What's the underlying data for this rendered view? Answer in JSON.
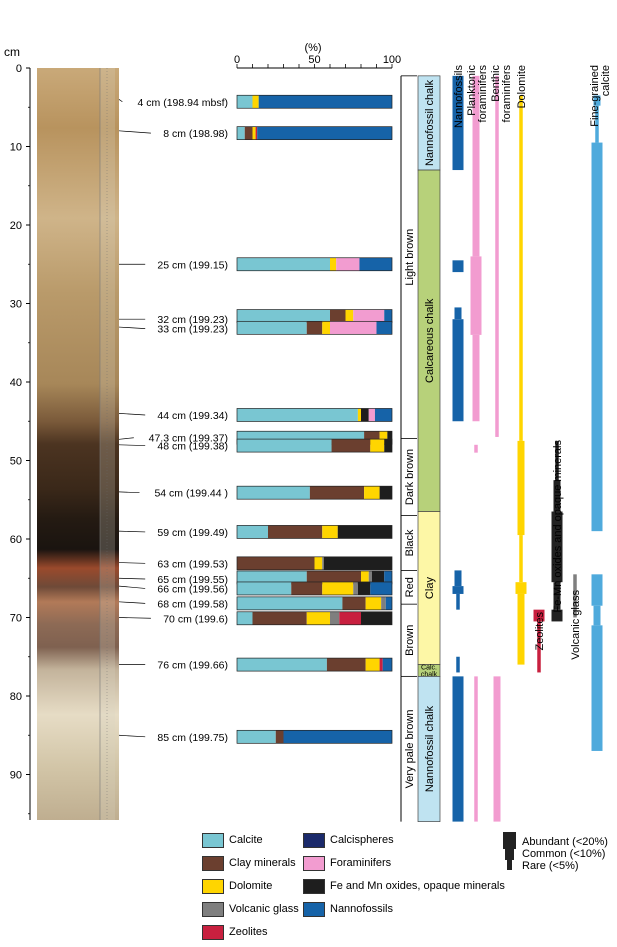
{
  "colors": {
    "Calcite": "#79c6d2",
    "Clay minerals": "#6b3f2f",
    "Dolomite": "#ffd500",
    "Volcanic glass": "#7f7f7f",
    "Zeolites": "#c8203f",
    "Calcispheres": "#1b2a6b",
    "Foraminifers": "#f29cd0",
    "Fe and Mn oxides, opaque minerals": "#1e1e1e",
    "Nannofossils": "#1663a8",
    "lithology_blue": "#bfe3f1",
    "lithology_green": "#b7d17a",
    "lithology_yellow": "#fdf7a6",
    "abundance_dark": "#222222",
    "fine_calcite": "#4faadc"
  },
  "depth_axis": {
    "unit": "cm",
    "ticks": [
      "0",
      "10",
      "20",
      "30",
      "40",
      "50",
      "60",
      "70",
      "80",
      "90"
    ]
  },
  "percent_axis": {
    "label": "(%)",
    "ticks": [
      "0",
      "50",
      "100"
    ]
  },
  "column_headers": {
    "nannofossils": "Nannofossils",
    "planktonic_1": "Planktonic",
    "planktonic_2": "foraminifers",
    "benthic_1": "Benthic",
    "benthic_2": "foraminifers",
    "dolomite": "Dolomite",
    "fine_calcite_1": "Fine-grained",
    "fine_calcite_2": "calcite",
    "fe_mn": "Fe-Mn oxides and opaque minerals",
    "zeolites": "Zeolites",
    "volcanic_glass": "Volcanic glass"
  },
  "color_units": [
    {
      "label": "Light brown",
      "top": 1,
      "bottom": 47.2
    },
    {
      "label": "Dark brown",
      "top": 47.2,
      "bottom": 57
    },
    {
      "label": "Black",
      "top": 57,
      "bottom": 64
    },
    {
      "label": "Red",
      "top": 64,
      "bottom": 68.3
    },
    {
      "label": "Brown",
      "top": 68.3,
      "bottom": 77.5
    },
    {
      "label": "Very pale brown",
      "top": 77.5,
      "bottom": 96
    }
  ],
  "lithology_units": [
    {
      "label": "Nannofossil chalk",
      "top": 1,
      "bottom": 13,
      "color": "lithology_blue"
    },
    {
      "label": "Calcareous chalk",
      "top": 13,
      "bottom": 56.5,
      "color": "lithology_green"
    },
    {
      "label": "Clay",
      "top": 56.5,
      "bottom": 76,
      "color": "lithology_yellow"
    },
    {
      "label": "Calc. chalk",
      "top": 76,
      "bottom": 77.5,
      "color": "lithology_green"
    },
    {
      "label": "Nannofossil chalk",
      "top": 77.5,
      "bottom": 96,
      "color": "lithology_blue"
    }
  ],
  "chart_data": {
    "type": "bar",
    "orientation": "horizontal-stacked",
    "xlabel": "(%)",
    "xlim": [
      0,
      100
    ],
    "ylabel": "cm",
    "ylim": [
      0,
      96
    ],
    "samples": [
      {
        "label": "4 cm (198.94 mbsf)",
        "depth": 4,
        "y": 4.3,
        "comp": [
          [
            "Calcite",
            10
          ],
          [
            "Dolomite",
            4
          ],
          [
            "Nannofossils",
            86
          ]
        ]
      },
      {
        "label": "8 cm (198.98)",
        "depth": 8,
        "y": 8.3,
        "comp": [
          [
            "Calcite",
            5
          ],
          [
            "Clay minerals",
            5
          ],
          [
            "Dolomite",
            2
          ],
          [
            "Zeolites",
            1
          ],
          [
            "Nannofossils",
            87
          ]
        ]
      },
      {
        "label": "25 cm (199.15)",
        "depth": 25,
        "y": 25,
        "comp": [
          [
            "Calcite",
            60
          ],
          [
            "Dolomite",
            4
          ],
          [
            "Foraminifers",
            15
          ],
          [
            "Nannofossils",
            21
          ]
        ]
      },
      {
        "label": "32 cm (199.23)",
        "depth": 32,
        "y": 31.6,
        "comp": [
          [
            "Calcite",
            60
          ],
          [
            "Clay minerals",
            10
          ],
          [
            "Dolomite",
            5
          ],
          [
            "Foraminifers",
            20
          ],
          [
            "Nannofossils",
            5
          ]
        ]
      },
      {
        "label": "33 cm (199.23)",
        "depth": 33,
        "y": 33.1,
        "comp": [
          [
            "Calcite",
            45
          ],
          [
            "Clay minerals",
            10
          ],
          [
            "Dolomite",
            5
          ],
          [
            "Foraminifers",
            30
          ],
          [
            "Nannofossils",
            10
          ]
        ]
      },
      {
        "label": "44 cm (199.34)",
        "depth": 44,
        "y": 44.2,
        "comp": [
          [
            "Calcite",
            78
          ],
          [
            "Dolomite",
            2
          ],
          [
            "Fe and Mn oxides, opaque minerals",
            5
          ],
          [
            "Foraminifers",
            4
          ],
          [
            "Nannofossils",
            11
          ]
        ]
      },
      {
        "label": "47.3 cm (199.37)",
        "depth": 47.3,
        "y": 47.1,
        "comp": [
          [
            "Calcite",
            82
          ],
          [
            "Clay minerals",
            10
          ],
          [
            "Dolomite",
            5
          ],
          [
            "Fe and Mn oxides, opaque minerals",
            3
          ]
        ]
      },
      {
        "label": "48 cm (199.38)",
        "depth": 48,
        "y": 48.1,
        "comp": [
          [
            "Calcite",
            61
          ],
          [
            "Clay minerals",
            25
          ],
          [
            "Dolomite",
            9
          ],
          [
            "Fe and Mn oxides, opaque minerals",
            5
          ]
        ]
      },
      {
        "label": "54 cm (199.44 )",
        "depth": 54,
        "y": 54.1,
        "comp": [
          [
            "Calcite",
            47
          ],
          [
            "Clay minerals",
            35
          ],
          [
            "Dolomite",
            10
          ],
          [
            "Fe and Mn oxides, opaque minerals",
            8
          ]
        ]
      },
      {
        "label": "59 cm (199.49)",
        "depth": 59,
        "y": 59.1,
        "comp": [
          [
            "Calcite",
            20
          ],
          [
            "Clay minerals",
            35
          ],
          [
            "Dolomite",
            10
          ],
          [
            "Fe and Mn oxides, opaque minerals",
            35
          ]
        ]
      },
      {
        "label": "63 cm (199.53)",
        "depth": 63,
        "y": 63.1,
        "comp": [
          [
            "Clay minerals",
            50
          ],
          [
            "Dolomite",
            5
          ],
          [
            "Volcanic glass",
            1
          ],
          [
            "Fe and Mn oxides, opaque minerals",
            44
          ]
        ]
      },
      {
        "label": "65 cm (199.55)",
        "depth": 65,
        "y": 64.9,
        "comp": [
          [
            "Calcite",
            45
          ],
          [
            "Clay minerals",
            35
          ],
          [
            "Dolomite",
            5
          ],
          [
            "Volcanic glass",
            2
          ],
          [
            "Fe and Mn oxides, opaque minerals",
            8
          ],
          [
            "Nannofossils",
            5
          ]
        ]
      },
      {
        "label": "66 cm (199.56)",
        "depth": 66,
        "y": 66.3,
        "comp": [
          [
            "Calcite",
            35
          ],
          [
            "Clay minerals",
            20
          ],
          [
            "Dolomite",
            20
          ],
          [
            "Volcanic glass",
            3
          ],
          [
            "Fe and Mn oxides, opaque minerals",
            8
          ],
          [
            "Nannofossils",
            14
          ]
        ]
      },
      {
        "label": "68 cm (199.58)",
        "depth": 68,
        "y": 68.2,
        "comp": [
          [
            "Calcite",
            68
          ],
          [
            "Clay minerals",
            15
          ],
          [
            "Dolomite",
            10
          ],
          [
            "Volcanic glass",
            3
          ],
          [
            "Nannofossils",
            4
          ]
        ]
      },
      {
        "label": "70 cm (199.6)",
        "depth": 70,
        "y": 70.1,
        "comp": [
          [
            "Calcite",
            10
          ],
          [
            "Clay minerals",
            35
          ],
          [
            "Dolomite",
            15
          ],
          [
            "Volcanic glass",
            6
          ],
          [
            "Zeolites",
            14
          ],
          [
            "Fe and Mn oxides, opaque minerals",
            20
          ]
        ]
      },
      {
        "label": "76 cm (199.66)",
        "depth": 76,
        "y": 76,
        "comp": [
          [
            "Calcite",
            58
          ],
          [
            "Clay minerals",
            25
          ],
          [
            "Dolomite",
            9
          ],
          [
            "Zeolites",
            2
          ],
          [
            "Nannofossils",
            6
          ]
        ]
      },
      {
        "label": "85 cm (199.75)",
        "depth": 85,
        "y": 85.2,
        "comp": [
          [
            "Calcite",
            25
          ],
          [
            "Clay minerals",
            5
          ],
          [
            "Nannofossils",
            70
          ]
        ]
      }
    ],
    "range_columns": [
      {
        "name": "Nannofossils",
        "color": "Nannofossils",
        "segments": [
          [
            1,
            13,
            "abundant"
          ],
          [
            24.5,
            26,
            "abundant"
          ],
          [
            30.5,
            32,
            "common"
          ],
          [
            32,
            45,
            "abundant"
          ],
          [
            64,
            66,
            "common"
          ],
          [
            66,
            67,
            "abundant"
          ],
          [
            67,
            69,
            "rare"
          ],
          [
            75,
            77,
            "rare"
          ],
          [
            77.5,
            96,
            "abundant"
          ]
        ]
      },
      {
        "name": "Planktonic foraminifers",
        "color": "Foraminifers",
        "segments": [
          [
            1,
            24,
            "common"
          ],
          [
            24,
            34,
            "abundant"
          ],
          [
            34,
            45,
            "common"
          ],
          [
            48,
            49,
            "rare"
          ],
          [
            77.5,
            96,
            "rare"
          ]
        ]
      },
      {
        "name": "Benthic foraminifers",
        "color": "Foraminifers",
        "segments": [
          [
            1,
            47,
            "rare"
          ],
          [
            77.5,
            96,
            "common"
          ]
        ]
      },
      {
        "name": "Dolomite",
        "color": "Dolomite",
        "segments": [
          [
            3.5,
            47.5,
            "rare"
          ],
          [
            47.5,
            59.5,
            "common"
          ],
          [
            59.5,
            65.5,
            "rare"
          ],
          [
            65.5,
            67,
            "abundant"
          ],
          [
            67,
            76,
            "common"
          ]
        ]
      },
      {
        "name": "Zeolites",
        "color": "Zeolites",
        "segments": [
          [
            69,
            70.5,
            "abundant"
          ],
          [
            70.5,
            77,
            "rare"
          ]
        ]
      },
      {
        "name": "Fe-Mn oxides and opaque minerals",
        "color": "abundance_dark",
        "segments": [
          [
            47.5,
            52.5,
            "rare"
          ],
          [
            52.5,
            56.5,
            "common"
          ],
          [
            56.5,
            65.5,
            "abundant"
          ],
          [
            65.5,
            69,
            "common"
          ],
          [
            69,
            70.5,
            "abundant"
          ]
        ]
      },
      {
        "name": "Volcanic glass",
        "color": "Volcanic glass",
        "segments": [
          [
            64.5,
            70,
            "rare"
          ]
        ]
      },
      {
        "name": "Fine-grained calcite",
        "color": "fine_calcite",
        "segments": [
          [
            3.5,
            4.8,
            "common"
          ],
          [
            4.8,
            9.5,
            "rare"
          ],
          [
            9.5,
            59,
            "abundant"
          ],
          [
            64.5,
            68.5,
            "abundant"
          ],
          [
            68.5,
            71,
            "common"
          ],
          [
            71,
            87,
            "abundant"
          ]
        ]
      }
    ]
  },
  "legend": {
    "items": [
      {
        "label": "Calcite",
        "color_key": "Calcite"
      },
      {
        "label": "Clay minerals",
        "color_key": "Clay minerals"
      },
      {
        "label": "Dolomite",
        "color_key": "Dolomite"
      },
      {
        "label": "Volcanic glass",
        "color_key": "Volcanic glass"
      },
      {
        "label": "Zeolites",
        "color_key": "Zeolites"
      },
      {
        "label": "Calcispheres",
        "color_key": "Calcispheres"
      },
      {
        "label": "Foraminifers",
        "color_key": "Foraminifers"
      },
      {
        "label": "Fe and Mn oxides, opaque minerals",
        "color_key": "Fe and Mn oxides, opaque minerals"
      },
      {
        "label": "Nannofossils",
        "color_key": "Nannofossils"
      }
    ],
    "abundance": [
      {
        "label": "Abundant (<20%)"
      },
      {
        "label": "Common (<10%)"
      },
      {
        "label": "Rare (<5%)"
      }
    ]
  }
}
